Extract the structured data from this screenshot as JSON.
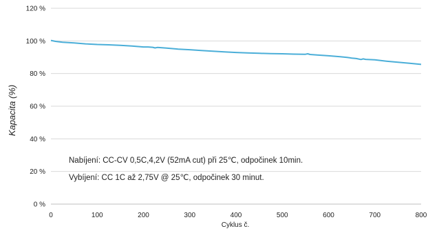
{
  "chart_data": {
    "type": "line",
    "ylabel": "Kapacita (%)",
    "xlabel": "Cyklus č.",
    "xlim": [
      0,
      800
    ],
    "ylim": [
      0,
      120
    ],
    "x_ticks": [
      0,
      100,
      200,
      300,
      400,
      500,
      600,
      700,
      800
    ],
    "y_ticks": [
      0,
      20,
      40,
      60,
      80,
      100,
      120
    ],
    "y_tick_labels": [
      "0 %",
      "20 %",
      "40 %",
      "60 %",
      "80 %",
      "100 %",
      "120 %"
    ],
    "grid": "horizontal",
    "line_color": "#4aaed8",
    "annotations": [
      "Nabíjení: CC-CV 0,5C,4,2V (52mA cut) při 25℃, odpočinek 10min.",
      "Vybíjení: CC 1C až 2,75V @ 25℃, odpočinek 30 minut."
    ],
    "series": [
      {
        "x": [
          0,
          10,
          25,
          50,
          75,
          100,
          125,
          150,
          175,
          200,
          210,
          220,
          225,
          230,
          240,
          250,
          275,
          300,
          325,
          350,
          375,
          400,
          425,
          450,
          475,
          500,
          525,
          550,
          555,
          560,
          575,
          600,
          625,
          640,
          650,
          660,
          670,
          675,
          680,
          700,
          725,
          750,
          775,
          800
        ],
        "values": [
          100.3,
          99.7,
          99.2,
          98.8,
          98.2,
          97.8,
          97.6,
          97.3,
          96.9,
          96.3,
          96.3,
          96.1,
          95.7,
          96.0,
          95.8,
          95.6,
          95.0,
          94.6,
          94.1,
          93.7,
          93.3,
          92.9,
          92.6,
          92.4,
          92.2,
          92.1,
          91.9,
          91.8,
          92.1,
          91.7,
          91.4,
          90.9,
          90.3,
          89.9,
          89.5,
          89.2,
          88.6,
          89.0,
          88.7,
          88.4,
          87.6,
          86.9,
          86.3,
          85.6
        ]
      }
    ]
  }
}
